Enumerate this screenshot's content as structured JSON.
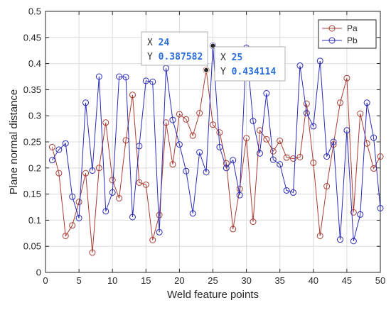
{
  "chart_data": {
    "type": "line",
    "xlabel": "Weld feature points",
    "ylabel": "Plane normal distance",
    "xlim": [
      0,
      50
    ],
    "ylim": [
      0,
      0.5
    ],
    "xticks": [
      0,
      5,
      10,
      15,
      20,
      25,
      30,
      35,
      40,
      45,
      50
    ],
    "yticks": [
      0,
      0.05,
      0.1,
      0.15,
      0.2,
      0.25,
      0.3,
      0.35,
      0.4,
      0.45,
      0.5
    ],
    "ytick_labels": [
      "0",
      "0.05",
      "0.1",
      "0.15",
      "0.2",
      "0.25",
      "0.3",
      "0.35",
      "0.4",
      "0.45",
      "0.5"
    ],
    "grid": true,
    "legend_position": "top-right",
    "x": [
      1,
      2,
      3,
      4,
      5,
      6,
      7,
      8,
      9,
      10,
      11,
      12,
      13,
      14,
      15,
      16,
      17,
      18,
      19,
      20,
      21,
      22,
      23,
      24,
      25,
      26,
      27,
      28,
      29,
      30,
      31,
      32,
      33,
      34,
      35,
      36,
      37,
      38,
      39,
      40,
      41,
      42,
      43,
      44,
      45,
      46,
      47,
      48,
      49,
      50
    ],
    "series": [
      {
        "name": "Pa",
        "color": "#a83c32",
        "values": [
          0.24,
          0.19,
          0.07,
          0.09,
          0.135,
          0.19,
          0.038,
          0.2,
          0.287,
          0.177,
          0.142,
          0.253,
          0.34,
          0.172,
          0.168,
          0.062,
          0.11,
          0.287,
          0.207,
          0.303,
          0.293,
          0.262,
          0.305,
          0.387582,
          0.283,
          0.268,
          0.209,
          0.083,
          0.16,
          0.257,
          0.097,
          0.272,
          0.255,
          0.232,
          0.252,
          0.22,
          0.218,
          0.221,
          0.323,
          0.21,
          0.07,
          0.165,
          0.245,
          0.325,
          0.372,
          0.115,
          0.304,
          0.247,
          0.199,
          0.222
        ]
      },
      {
        "name": "Pb",
        "color": "#2b2bb8",
        "values": [
          0.215,
          0.235,
          0.247,
          0.145,
          0.104,
          0.325,
          0.195,
          0.375,
          0.117,
          0.153,
          0.375,
          0.374,
          0.106,
          0.242,
          0.367,
          0.365,
          0.077,
          0.391,
          0.292,
          0.245,
          0.194,
          0.113,
          0.23,
          0.192,
          0.434114,
          0.24,
          0.2,
          0.215,
          0.148,
          0.43,
          0.29,
          0.228,
          0.343,
          0.216,
          0.207,
          0.157,
          0.153,
          0.396,
          0.305,
          0.28,
          0.405,
          0.222,
          0.25,
          0.063,
          0.272,
          0.06,
          0.111,
          0.325,
          0.258,
          0.123
        ]
      }
    ],
    "datatips": [
      {
        "series": "Pa",
        "x_text": "24",
        "y_text": "0.387582",
        "x": 24,
        "y": 0.387582
      },
      {
        "series": "Pb",
        "x_text": "25",
        "y_text": "0.434114",
        "x": 25,
        "y": 0.434114
      }
    ]
  }
}
